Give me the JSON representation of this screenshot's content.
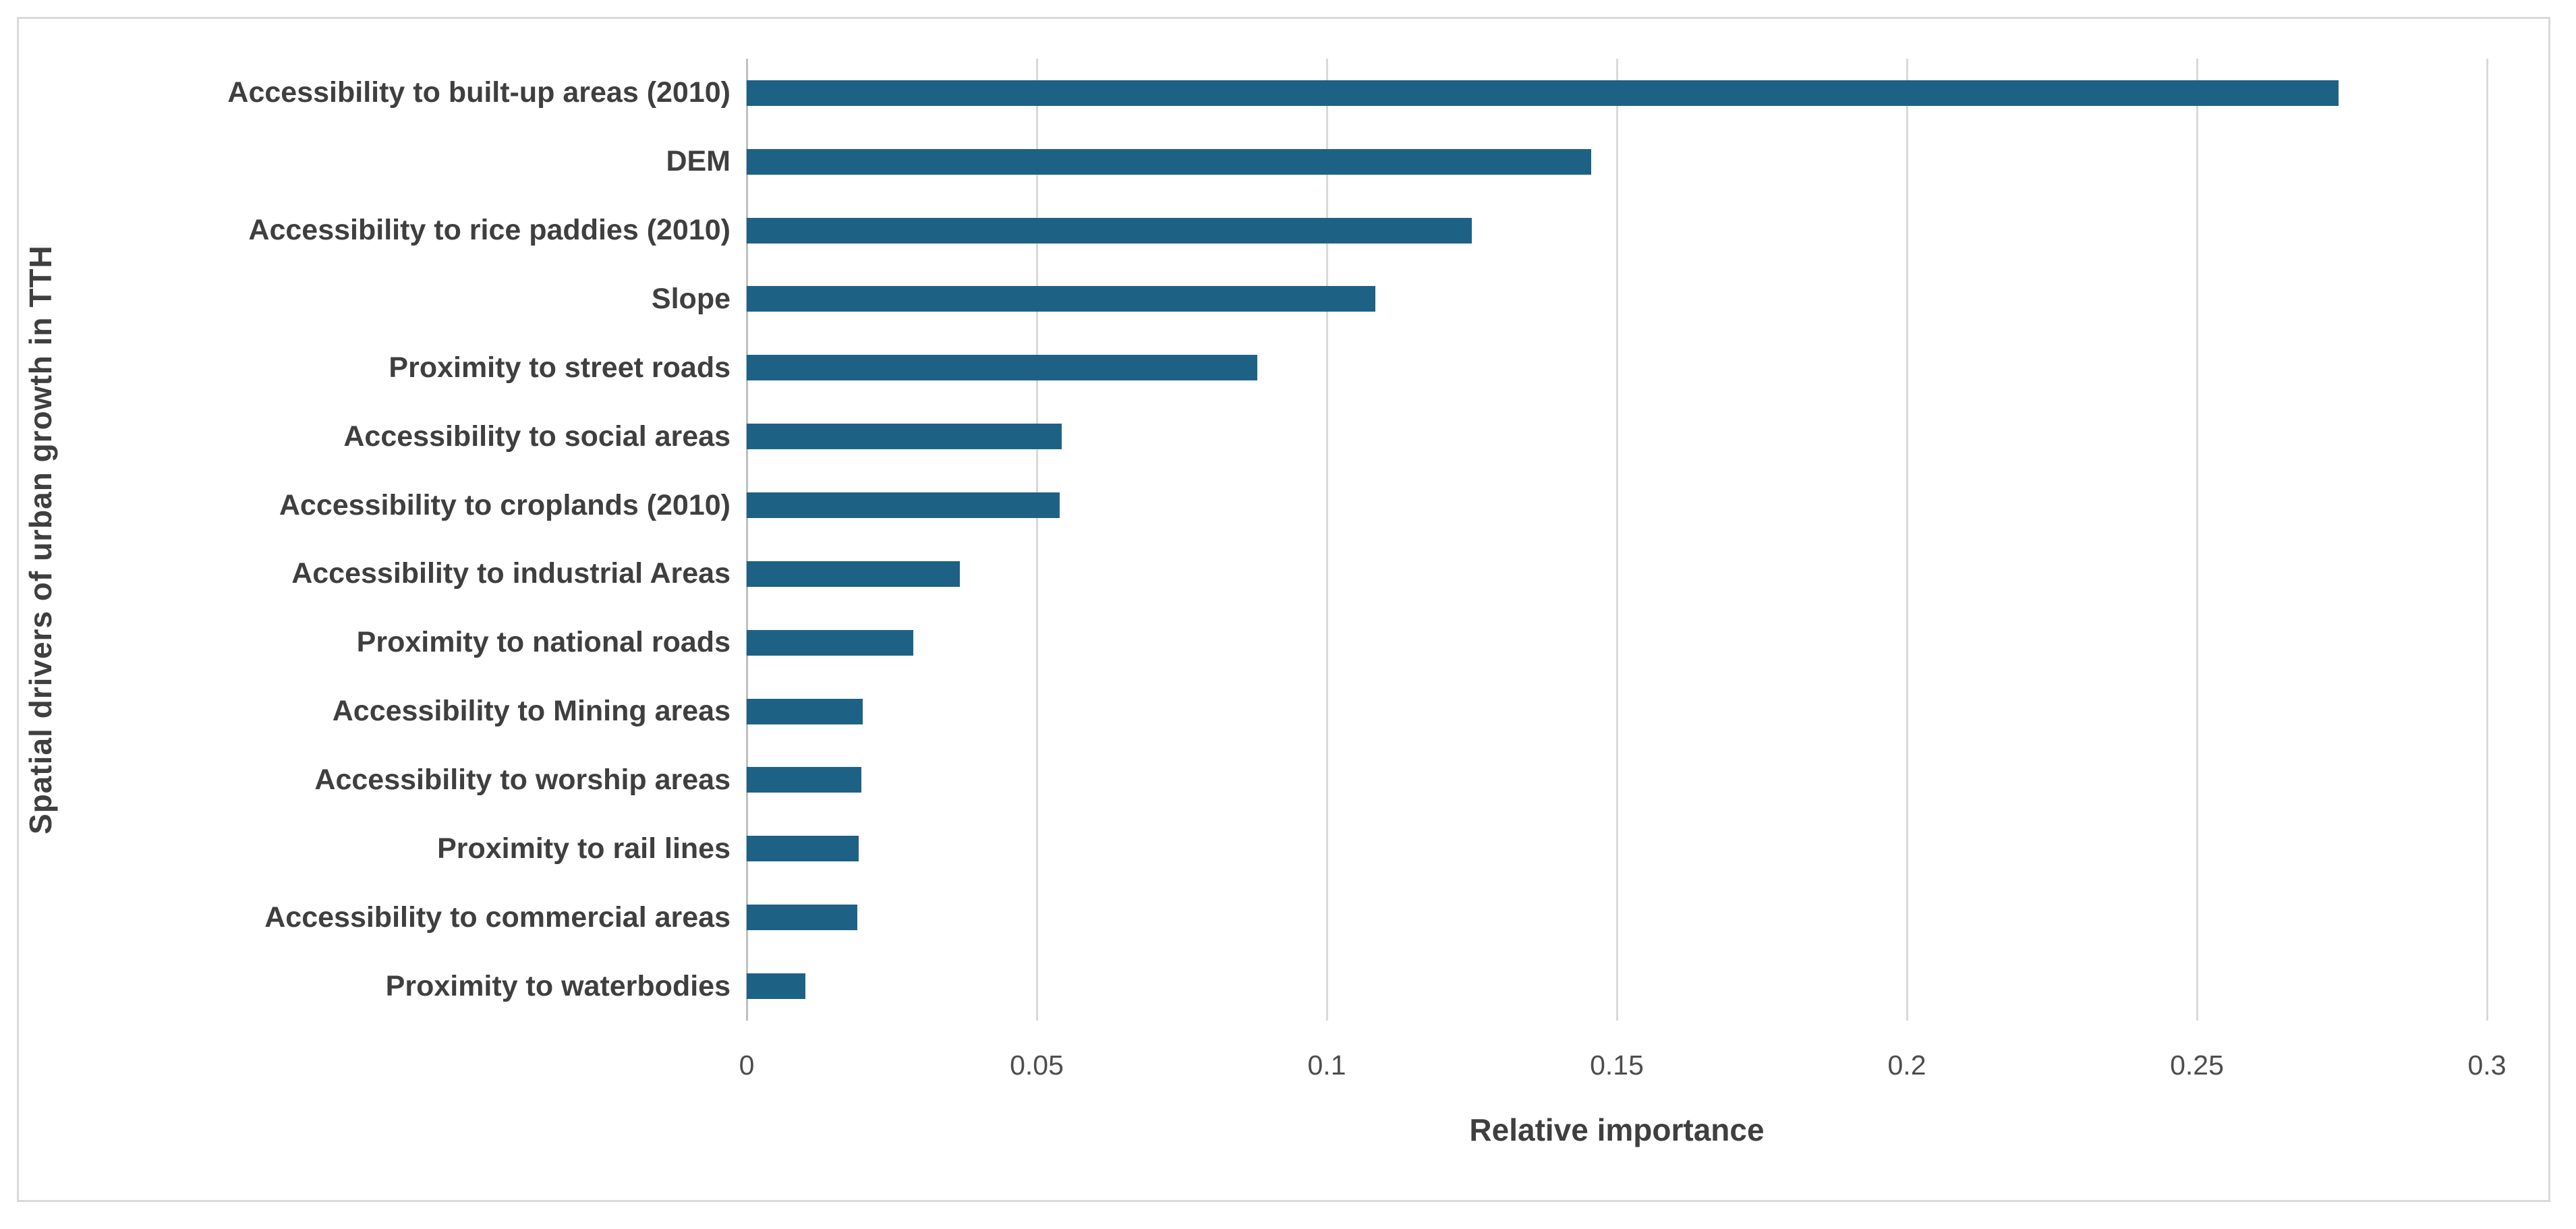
{
  "figure": {
    "background": "#ffffff",
    "frame_border_color": "#d9d9d9",
    "gridline_color": "#d9d9d9",
    "axis_line_color": "#bfbfbf",
    "label_color": "#3f3f3f",
    "tick_color": "#4d4d4d"
  },
  "chart_data": {
    "type": "bar",
    "orientation": "horizontal",
    "title": "",
    "xlabel": "Relative importance",
    "ylabel": "Spatial drivers of urban growth in TTH",
    "categories": [
      "Accessibility to built-up areas (2010)",
      "DEM",
      "Accessibility to rice paddies (2010)",
      "Slope",
      "Proximity to street roads",
      "Accessibility to social areas",
      "Accessibility to croplands (2010)",
      "Accessibility to industrial Areas",
      "Proximity to national roads",
      "Accessibility to Mining areas",
      "Accessibility to worship areas",
      "Proximity to rail lines",
      "Accessibility to commercial areas",
      "Proximity to waterbodies"
    ],
    "values": [
      0.2744,
      0.1456,
      0.125,
      0.1084,
      0.088,
      0.0543,
      0.054,
      0.0367,
      0.0287,
      0.02,
      0.0198,
      0.0193,
      0.0191,
      0.0101
    ],
    "xlim": [
      0,
      0.3
    ],
    "x_ticks": [
      0,
      0.05,
      0.1,
      0.15,
      0.2,
      0.25,
      0.3
    ],
    "x_tick_labels": [
      "0",
      "0.05",
      "0.1",
      "0.15",
      "0.2",
      "0.25",
      "0.3"
    ],
    "grid": true,
    "legend": "none",
    "bar_color": "#1d6285"
  }
}
